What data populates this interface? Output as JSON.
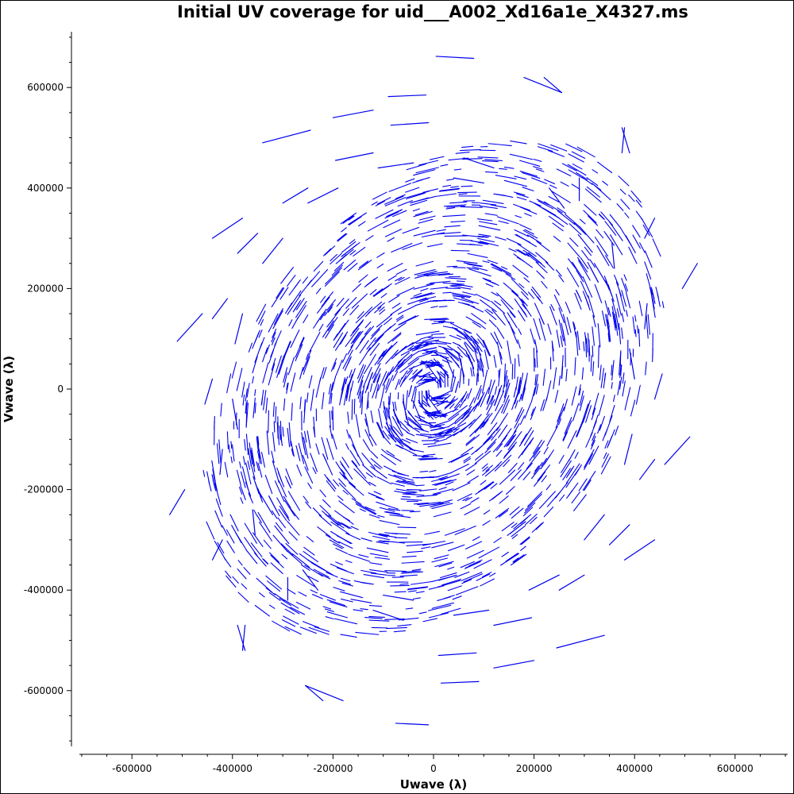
{
  "chart_data": {
    "type": "scatter",
    "title": "Initial UV coverage for uid___A002_Xd16a1e_X4327.ms",
    "xlabel": "Uwave (λ)",
    "ylabel": "Vwave (λ)",
    "xlim": [
      -700000,
      700000
    ],
    "ylim": [
      -700000,
      700000
    ],
    "xticks": [
      -600000,
      -400000,
      -200000,
      0,
      200000,
      400000,
      600000
    ],
    "yticks": [
      600000,
      400000,
      200000,
      0,
      -200000,
      -400000,
      -600000
    ],
    "xtick_labels": [
      "-600000",
      "-400000",
      "-200000",
      "0",
      "200000",
      "400000",
      "600000"
    ],
    "ytick_labels": [
      "600000",
      "400000",
      "200000",
      "0",
      "-200000",
      "-400000",
      "-600000"
    ],
    "color": "#0000ee",
    "grid": false,
    "legend": "none",
    "series": [
      {
        "point_style": "short arc segments",
        "values": [
          [
            [
              5000,
              662000
            ],
            [
              80000,
              658000
            ]
          ],
          [
            [
              -10000,
              -668000
            ],
            [
              -75000,
              -665000
            ]
          ],
          [
            [
              180000,
              620000
            ],
            [
              255000,
              590000
            ]
          ],
          [
            [
              -180000,
              -620000
            ],
            [
              -255000,
              -590000
            ]
          ],
          [
            [
              375000,
              520000
            ],
            [
              390000,
              470000
            ]
          ],
          [
            [
              -375000,
              -520000
            ],
            [
              -390000,
              -470000
            ]
          ],
          [
            [
              -340000,
              490000
            ],
            [
              -245000,
              515000
            ]
          ],
          [
            [
              340000,
              -490000
            ],
            [
              245000,
              -515000
            ]
          ],
          [
            [
              -200000,
              540000
            ],
            [
              -120000,
              555000
            ]
          ],
          [
            [
              200000,
              -540000
            ],
            [
              120000,
              -555000
            ]
          ],
          [
            [
              -90000,
              582000
            ],
            [
              -15000,
              585000
            ]
          ],
          [
            [
              90000,
              -582000
            ],
            [
              15000,
              -585000
            ]
          ],
          [
            [
              -440000,
              300000
            ],
            [
              -380000,
              340000
            ]
          ],
          [
            [
              440000,
              -300000
            ],
            [
              380000,
              -340000
            ]
          ],
          [
            [
              -510000,
              95000
            ],
            [
              -460000,
              150000
            ]
          ],
          [
            [
              510000,
              -95000
            ],
            [
              460000,
              -150000
            ]
          ],
          [
            [
              -525000,
              -250000
            ],
            [
              -495000,
              -200000
            ]
          ],
          [
            [
              525000,
              250000
            ],
            [
              495000,
              200000
            ]
          ],
          [
            [
              -440000,
              -340000
            ],
            [
              -420000,
              -300000
            ]
          ],
          [
            [
              440000,
              340000
            ],
            [
              420000,
              300000
            ]
          ],
          [
            [
              -380000,
              -520000
            ],
            [
              -375000,
              -470000
            ]
          ],
          [
            [
              380000,
              520000
            ],
            [
              375000,
              470000
            ]
          ],
          [
            [
              -290000,
              -420000
            ],
            [
              -290000,
              -375000
            ]
          ],
          [
            [
              290000,
              420000
            ],
            [
              290000,
              375000
            ]
          ],
          [
            [
              -220000,
              -620000
            ],
            [
              -255000,
              -590000
            ]
          ],
          [
            [
              220000,
              620000
            ],
            [
              255000,
              590000
            ]
          ],
          [
            [
              10000,
              -530000
            ],
            [
              85000,
              -525000
            ]
          ],
          [
            [
              -10000,
              530000
            ],
            [
              -85000,
              525000
            ]
          ],
          [
            [
              120000,
              -470000
            ],
            [
              195000,
              -455000
            ]
          ],
          [
            [
              -120000,
              470000
            ],
            [
              -195000,
              455000
            ]
          ],
          [
            [
              250000,
              -400000
            ],
            [
              300000,
              -370000
            ]
          ],
          [
            [
              -250000,
              400000
            ],
            [
              -300000,
              370000
            ]
          ],
          [
            [
              350000,
              -310000
            ],
            [
              390000,
              -270000
            ]
          ],
          [
            [
              -350000,
              310000
            ],
            [
              -390000,
              270000
            ]
          ],
          [
            [
              410000,
              -180000
            ],
            [
              440000,
              -140000
            ]
          ],
          [
            [
              -410000,
              180000
            ],
            [
              -440000,
              140000
            ]
          ],
          [
            [
              440000,
              -20000
            ],
            [
              455000,
              30000
            ]
          ],
          [
            [
              -440000,
              20000
            ],
            [
              -455000,
              -30000
            ]
          ],
          [
            [
              420000,
              120000
            ],
            [
              425000,
              170000
            ]
          ],
          [
            [
              -420000,
              -120000
            ],
            [
              -425000,
              -170000
            ]
          ],
          [
            [
              360000,
              240000
            ],
            [
              355000,
              290000
            ]
          ],
          [
            [
              -360000,
              -240000
            ],
            [
              -355000,
              -290000
            ]
          ],
          [
            [
              260000,
              360000
            ],
            [
              230000,
              400000
            ]
          ],
          [
            [
              -260000,
              -360000
            ],
            [
              -230000,
              -400000
            ]
          ],
          [
            [
              120000,
              440000
            ],
            [
              60000,
              460000
            ]
          ],
          [
            [
              -120000,
              -440000
            ],
            [
              -60000,
              -460000
            ]
          ],
          [
            [
              -40000,
              450000
            ],
            [
              -110000,
              440000
            ]
          ],
          [
            [
              40000,
              -450000
            ],
            [
              110000,
              -440000
            ]
          ],
          [
            [
              -190000,
              400000
            ],
            [
              -250000,
              370000
            ]
          ],
          [
            [
              190000,
              -400000
            ],
            [
              250000,
              -370000
            ]
          ],
          [
            [
              -300000,
              300000
            ],
            [
              -340000,
              250000
            ]
          ],
          [
            [
              300000,
              -300000
            ],
            [
              340000,
              -250000
            ]
          ],
          [
            [
              -380000,
              150000
            ],
            [
              -395000,
              90000
            ]
          ],
          [
            [
              380000,
              -150000
            ],
            [
              395000,
              -90000
            ]
          ],
          [
            [
              -400000,
              -20000
            ],
            [
              -390000,
              -80000
            ]
          ],
          [
            [
              400000,
              20000
            ],
            [
              390000,
              80000
            ]
          ],
          [
            [
              -350000,
              -200000
            ],
            [
              -320000,
              -250000
            ]
          ],
          [
            [
              350000,
              200000
            ],
            [
              320000,
              250000
            ]
          ],
          [
            [
              -250000,
              -340000
            ],
            [
              -200000,
              -370000
            ]
          ],
          [
            [
              250000,
              340000
            ],
            [
              200000,
              370000
            ]
          ],
          [
            [
              -100000,
              -410000
            ],
            [
              -40000,
              -420000
            ]
          ],
          [
            [
              100000,
              410000
            ],
            [
              40000,
              420000
            ]
          ]
        ]
      }
    ]
  }
}
